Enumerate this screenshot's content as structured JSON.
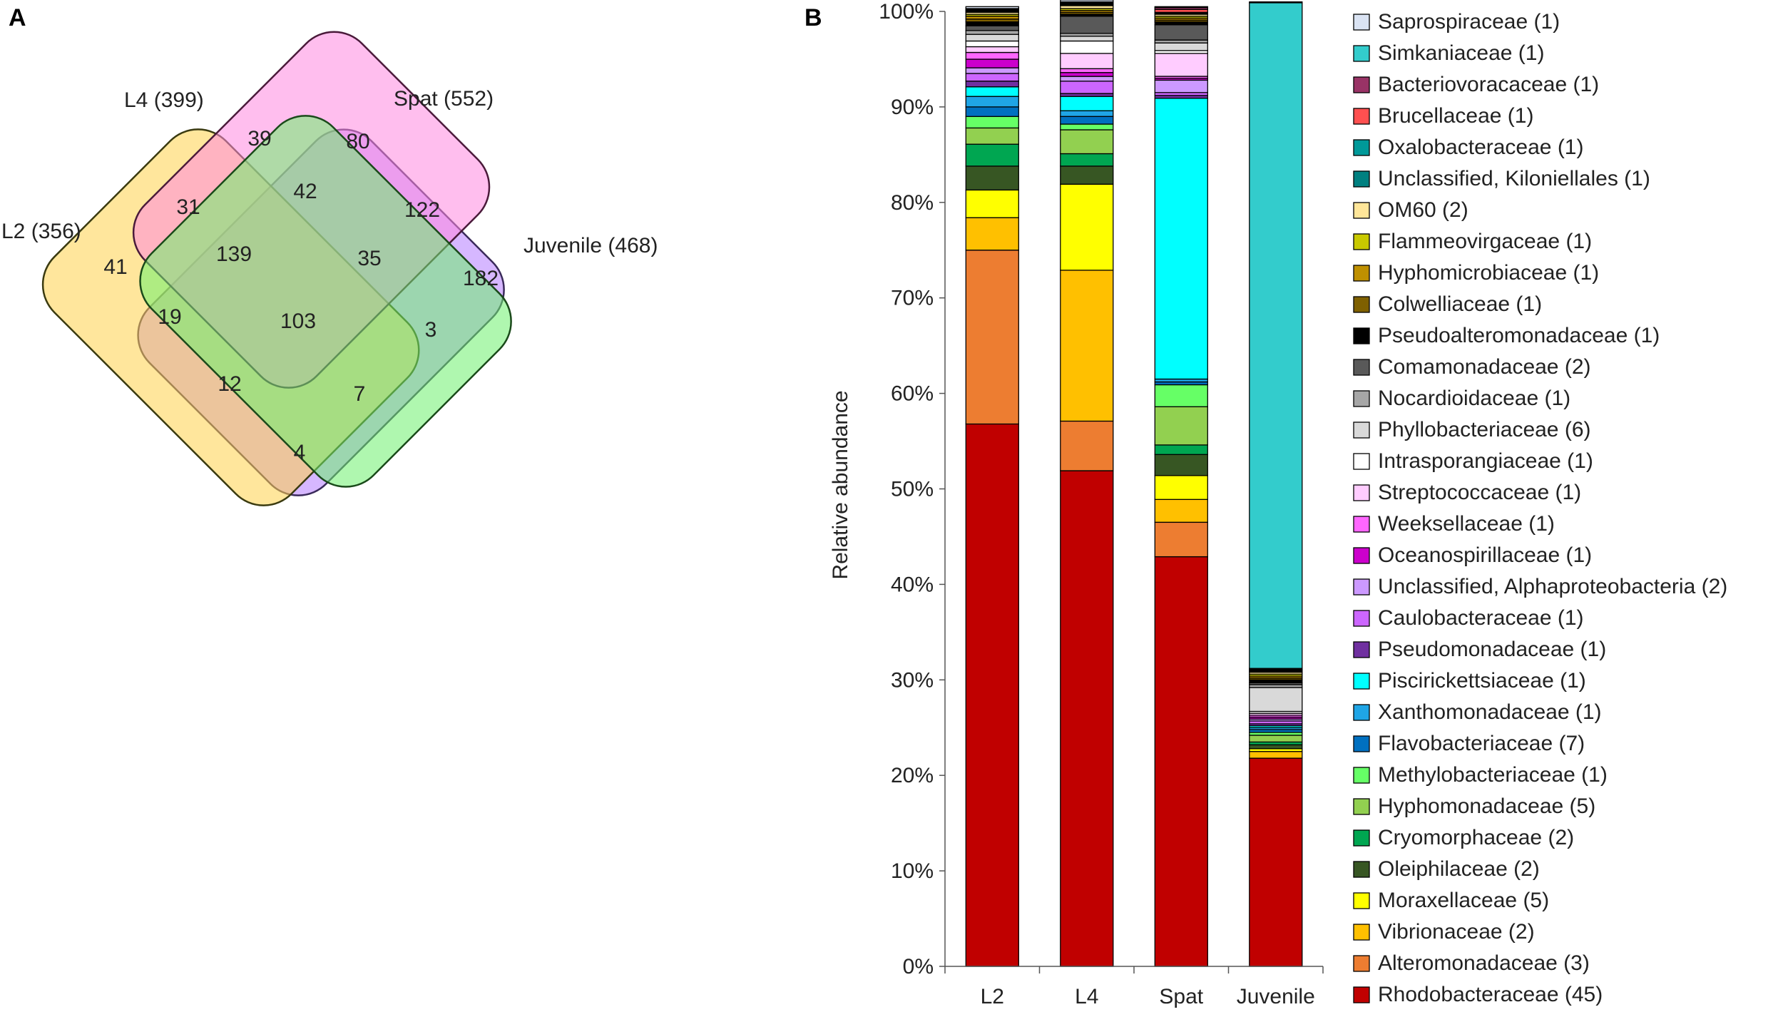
{
  "panels": {
    "a": "A",
    "b": "B"
  },
  "venn": {
    "sets": [
      {
        "name": "L2 (356)",
        "color": "#b57cff"
      },
      {
        "name": "L4 (399)",
        "color": "#ffd24a"
      },
      {
        "name": "Spat (552)",
        "color": "#ff88e0"
      },
      {
        "name": "Juvenile (468)",
        "color": "#6ef06e"
      }
    ],
    "regions": [
      {
        "key": "L4",
        "count": "39"
      },
      {
        "key": "Spat",
        "count": "80"
      },
      {
        "key": "L2_L4",
        "count": "31"
      },
      {
        "key": "L4_Spat",
        "count": "42"
      },
      {
        "key": "Spat_Juv",
        "count": "122"
      },
      {
        "key": "L2",
        "count": "41"
      },
      {
        "key": "L2_L4_Spat",
        "count": "139"
      },
      {
        "key": "L4_Spat_Juv",
        "count": "35"
      },
      {
        "key": "Juv",
        "count": "182"
      },
      {
        "key": "L2_Spat",
        "count": "19"
      },
      {
        "key": "all",
        "count": "103"
      },
      {
        "key": "L4_Juv",
        "count": "3"
      },
      {
        "key": "L2_Spat_Juv",
        "count": "12"
      },
      {
        "key": "L2_L4_Juv",
        "count": "7"
      },
      {
        "key": "L2_Juv",
        "count": "4"
      }
    ]
  },
  "chart_data": {
    "type": "bar",
    "stacked": true,
    "title": "",
    "xlabel": "",
    "ylabel": "Relative abundance",
    "ylim": [
      0,
      100
    ],
    "ytick_labels": [
      "0%",
      "10%",
      "20%",
      "30%",
      "40%",
      "50%",
      "60%",
      "70%",
      "80%",
      "90%",
      "100%"
    ],
    "categories": [
      "L2",
      "L4",
      "Spat",
      "Juvenile"
    ],
    "series": [
      {
        "name": "Rhodobacteraceae (45)",
        "color": "#c00000",
        "values": [
          56.8,
          51.9,
          42.9,
          21.8
        ]
      },
      {
        "name": "Alteromonadaceae (3)",
        "color": "#ed7d31",
        "values": [
          18.2,
          5.2,
          3.6,
          0
        ]
      },
      {
        "name": "Vibrionaceae (2)",
        "color": "#ffc000",
        "values": [
          3.4,
          15.8,
          2.4,
          0.7
        ]
      },
      {
        "name": "Moraxellaceae (5)",
        "color": "#ffff00",
        "values": [
          2.9,
          9.0,
          2.5,
          0.3
        ]
      },
      {
        "name": "Oleiphilaceae (2)",
        "color": "#375623",
        "values": [
          2.5,
          1.9,
          2.2,
          0.4
        ]
      },
      {
        "name": "Cryomorphaceae (2)",
        "color": "#00a651",
        "values": [
          2.3,
          1.3,
          1.0,
          0.3
        ]
      },
      {
        "name": "Hyphomonadaceae (5)",
        "color": "#92d050",
        "values": [
          1.7,
          2.5,
          4.0,
          0.7
        ]
      },
      {
        "name": "Methylobacteriaceae (1)",
        "color": "#66ff66",
        "values": [
          1.2,
          0.6,
          2.3,
          0.3
        ]
      },
      {
        "name": "Flavobacteriaceae (7)",
        "color": "#0070c0",
        "values": [
          1.0,
          0.8,
          0.3,
          0.3
        ]
      },
      {
        "name": "Xanthomonadaceae (1)",
        "color": "#1fa5e6",
        "values": [
          1.1,
          0.6,
          0.3,
          0.2
        ]
      },
      {
        "name": "Piscirickettsiaceae (1)",
        "color": "#00ffff",
        "values": [
          1.0,
          1.5,
          29.4,
          0.2
        ]
      },
      {
        "name": "Pseudomonadaceae (1)",
        "color": "#7030a0",
        "values": [
          0.6,
          0.3,
          0.3,
          0.2
        ]
      },
      {
        "name": "Caulobacteraceae (1)",
        "color": "#cc66ff",
        "values": [
          0.8,
          1.3,
          0.3,
          0.3
        ]
      },
      {
        "name": "Unclassified, Alphaproteobacteria (2)",
        "color": "#cc99ff",
        "values": [
          0.6,
          0.5,
          1.3,
          0.2
        ]
      },
      {
        "name": "Oceanospirillaceae (1)",
        "color": "#cc00cc",
        "values": [
          0.9,
          0.4,
          0.2,
          0.2
        ]
      },
      {
        "name": "Weeksellaceae (1)",
        "color": "#ff66ff",
        "values": [
          0.7,
          0.4,
          0.2,
          0.2
        ]
      },
      {
        "name": "Streptococcaceae (1)",
        "color": "#ffccff",
        "values": [
          0.6,
          1.6,
          2.4,
          0.2
        ]
      },
      {
        "name": "Intrasporangiaceae (1)",
        "color": "#ffffff",
        "values": [
          0.6,
          1.3,
          0.3,
          0.2
        ]
      },
      {
        "name": "Phyllobacteriaceae (6)",
        "color": "#d9d9d9",
        "values": [
          0.7,
          0.5,
          0.8,
          2.5
        ]
      },
      {
        "name": "Nocardioidaceae (1)",
        "color": "#a6a6a6",
        "values": [
          0.4,
          0.3,
          0.3,
          0.3
        ]
      },
      {
        "name": "Comamonadaceae (2)",
        "color": "#595959",
        "values": [
          0.5,
          1.8,
          1.6,
          0.2
        ]
      },
      {
        "name": "Pseudoalteromonadaceae (1)",
        "color": "#000000",
        "values": [
          0.4,
          0.2,
          0.3,
          0.3
        ]
      },
      {
        "name": "Colwelliaceae (1)",
        "color": "#7f6000",
        "values": [
          0.3,
          0.2,
          0.2,
          0.2
        ]
      },
      {
        "name": "Hyphomicrobiaceae (1)",
        "color": "#bf9000",
        "values": [
          0.3,
          0.2,
          0.2,
          0.2
        ]
      },
      {
        "name": "Flammeovirgaceae (1)",
        "color": "#c9c900",
        "values": [
          0.2,
          0.2,
          0.2,
          0.2
        ]
      },
      {
        "name": "OM60 (2)",
        "color": "#ffe699",
        "values": [
          0.2,
          0.3,
          0.2,
          0.2
        ]
      },
      {
        "name": "Unclassified, Kiloniellales (1)",
        "color": "#008080",
        "values": [
          0.1,
          0.1,
          0.1,
          0.1
        ]
      },
      {
        "name": "Oxalobacteraceae (1)",
        "color": "#009999",
        "values": [
          0.1,
          0.1,
          0.1,
          0.1
        ]
      },
      {
        "name": "Brucellaceae (1)",
        "color": "#ff5050",
        "values": [
          0.1,
          0.1,
          0.3,
          0.1
        ]
      },
      {
        "name": "Bacteriovoracaceae (1)",
        "color": "#993366",
        "values": [
          0.1,
          0.1,
          0.2,
          0.1
        ]
      },
      {
        "name": "Simkaniaceae (1)",
        "color": "#33cccc",
        "values": [
          0,
          0,
          0,
          69.7
        ]
      },
      {
        "name": "Saprospiraceae (1)",
        "color": "#dae3f3",
        "values": [
          0.2,
          0.2,
          0.1,
          0.1
        ]
      }
    ],
    "legend_position": "right"
  }
}
